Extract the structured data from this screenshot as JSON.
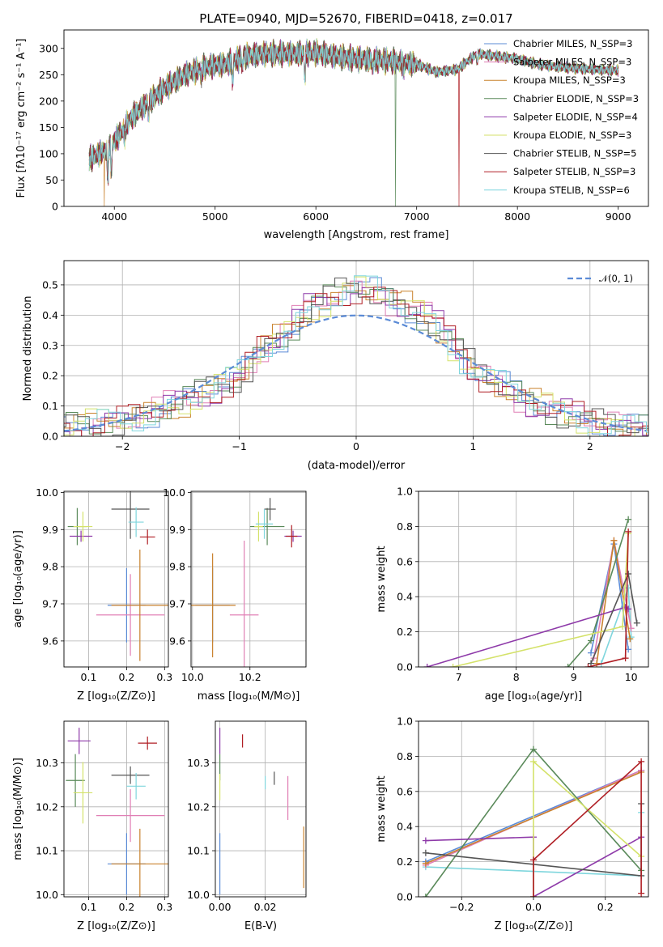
{
  "chart_data": [
    {
      "type": "line",
      "title": "PLATE=0940, MJD=52670, FIBERID=0418, z=0.017",
      "xlabel": "wavelength [Angstrom, rest frame]",
      "ylabel": "Flux [fλ10⁻¹⁷ erg cm⁻² s⁻¹ A⁻¹]",
      "xlim": [
        3500,
        9300
      ],
      "ylim": [
        0,
        335
      ],
      "xticks": [
        4000,
        5000,
        6000,
        7000,
        8000,
        9000
      ],
      "yticks": [
        0,
        50,
        100,
        150,
        200,
        250,
        300
      ],
      "grid": false,
      "legend_position": "top-right",
      "continuum": {
        "x": [
          3750,
          3850,
          3950,
          4100,
          4200,
          4350,
          4500,
          4700,
          4900,
          5100,
          5300,
          5500,
          5800,
          6000,
          6200,
          6400,
          6600,
          6800,
          7000,
          7200,
          7400,
          7600,
          7800,
          8000,
          8200,
          8400,
          8600,
          8800,
          9000
        ],
        "y": [
          90,
          100,
          110,
          150,
          175,
          200,
          225,
          250,
          265,
          270,
          285,
          290,
          290,
          292,
          285,
          280,
          278,
          275,
          270,
          255,
          260,
          290,
          285,
          280,
          270,
          265,
          262,
          260,
          258
        ]
      },
      "series": [
        {
          "name": "Chabrier MILES, N_SSP=3",
          "color": "#5b8bd6",
          "dip_x": null
        },
        {
          "name": "Salpeter MILES, N_SSP=3",
          "color": "#e07fb5",
          "dip_x": null
        },
        {
          "name": "Kroupa MILES, N_SSP=3",
          "color": "#c9822d",
          "dip_x": 3900
        },
        {
          "name": "Chabrier ELODIE, N_SSP=3",
          "color": "#5a8a5a",
          "dip_x": 6790
        },
        {
          "name": "Salpeter ELODIE, N_SSP=4",
          "color": "#8e3aa9",
          "dip_x": null
        },
        {
          "name": "Kroupa ELODIE, N_SSP=3",
          "color": "#d4e26a",
          "dip_x": null
        },
        {
          "name": "Chabrier STELIB, N_SSP=5",
          "color": "#555555",
          "dip_x": null
        },
        {
          "name": "Salpeter STELIB, N_SSP=3",
          "color": "#b01f25",
          "dip_x": 7420
        },
        {
          "name": "Kroupa STELIB, N_SSP=6",
          "color": "#7fd6dd",
          "dip_x": null
        }
      ]
    },
    {
      "type": "line",
      "xlabel": "(data-model)/error",
      "ylabel": "Normed distribution",
      "xlim": [
        -2.5,
        2.5
      ],
      "ylim": [
        0,
        0.58
      ],
      "xticks": [
        -2,
        -1,
        0,
        1,
        2
      ],
      "yticks": [
        0.0,
        0.1,
        0.2,
        0.3,
        0.4,
        0.5
      ],
      "grid": true,
      "legend_position": "top-right",
      "gaussian": {
        "label": "𝒩(0, 1)",
        "color": "#5b8bd6",
        "mean": 0,
        "sigma": 1
      },
      "bin_width": 0.1,
      "histogram_envelope": {
        "x": [
          -2.5,
          -2.0,
          -1.5,
          -1.0,
          -0.8,
          -0.6,
          -0.4,
          -0.2,
          0.0,
          0.2,
          0.4,
          0.6,
          0.8,
          1.0,
          1.5,
          2.0,
          2.5
        ],
        "y": [
          0.03,
          0.05,
          0.11,
          0.19,
          0.29,
          0.34,
          0.42,
          0.46,
          0.49,
          0.47,
          0.43,
          0.4,
          0.32,
          0.22,
          0.11,
          0.05,
          0.02
        ]
      },
      "series_colors": [
        "#5b8bd6",
        "#e07fb5",
        "#c9822d",
        "#5a8a5a",
        "#8e3aa9",
        "#d4e26a",
        "#555555",
        "#b01f25",
        "#7fd6dd"
      ]
    },
    {
      "type": "scatter",
      "xlabel": "Z [log₁₀(Z/Z⊙)]",
      "ylabel": "age  [log₁₀(age/yr)]",
      "xlim": [
        0.035,
        0.31
      ],
      "ylim": [
        9.53,
        10.003
      ],
      "xticks": [
        0.1,
        0.2,
        0.3
      ],
      "yticks": [
        9.6,
        9.7,
        9.8,
        9.9,
        10.0
      ],
      "grid": true,
      "points": [
        {
          "color": "#5b8bd6",
          "x": 0.2,
          "xerr": 0.05,
          "y": 9.696,
          "yerr": 0.1
        },
        {
          "color": "#e07fb5",
          "x": 0.21,
          "xerr": 0.09,
          "y": 9.67,
          "yerr": 0.11
        },
        {
          "color": "#c9822d",
          "x": 0.235,
          "xerr": 0.075,
          "y": 9.696,
          "yerr": 0.15
        },
        {
          "color": "#5a8a5a",
          "x": 0.07,
          "xerr": 0.025,
          "y": 9.908,
          "yerr": 0.05
        },
        {
          "color": "#8e3aa9",
          "x": 0.08,
          "xerr": 0.03,
          "y": 9.882,
          "yerr": 0.015
        },
        {
          "color": "#d4e26a",
          "x": 0.085,
          "xerr": 0.025,
          "y": 9.908,
          "yerr": 0.04
        },
        {
          "color": "#555555",
          "x": 0.21,
          "xerr": 0.05,
          "y": 9.955,
          "yerr": 0.08
        },
        {
          "color": "#b01f25",
          "x": 0.255,
          "xerr": 0.02,
          "y": 9.88,
          "yerr": 0.02
        },
        {
          "color": "#7fd6dd",
          "x": 0.225,
          "xerr": 0.02,
          "y": 9.92,
          "yerr": 0.04
        }
      ]
    },
    {
      "type": "scatter",
      "xlabel": "mass [log₁₀(M/M⊙)]",
      "xlim": [
        9.995,
        10.395
      ],
      "ylim": [
        9.53,
        10.003
      ],
      "xticks": [
        10.0,
        10.2
      ],
      "yticks": [
        9.6,
        9.7,
        9.8,
        9.9,
        10.0
      ],
      "grid": true,
      "points": [
        {
          "color": "#5b8bd6",
          "x": 10.07,
          "xerr": 0.06,
          "y": 9.696,
          "yerr": 0.1
        },
        {
          "color": "#e07fb5",
          "x": 10.18,
          "xerr": 0.05,
          "y": 9.67,
          "yerr": 0.2
        },
        {
          "color": "#c9822d",
          "x": 10.07,
          "xerr": 0.08,
          "y": 9.696,
          "yerr": 0.14
        },
        {
          "color": "#5a8a5a",
          "x": 10.26,
          "xerr": 0.06,
          "y": 9.908,
          "yerr": 0.05
        },
        {
          "color": "#8e3aa9",
          "x": 10.35,
          "xerr": 0.03,
          "y": 9.882,
          "yerr": 0.015
        },
        {
          "color": "#d4e26a",
          "x": 10.23,
          "xerr": 0.015,
          "y": 9.908,
          "yerr": 0.04
        },
        {
          "color": "#555555",
          "x": 10.27,
          "xerr": 0.02,
          "y": 9.955,
          "yerr": 0.03
        },
        {
          "color": "#b01f25",
          "x": 10.345,
          "xerr": 0.02,
          "y": 9.882,
          "yerr": 0.03
        },
        {
          "color": "#7fd6dd",
          "x": 10.25,
          "xerr": 0.03,
          "y": 9.915,
          "yerr": 0.04
        }
      ]
    },
    {
      "type": "line",
      "xlabel": "age  [log₁₀(age/yr)]",
      "ylabel": "mass weight",
      "xlim": [
        6.3,
        10.3
      ],
      "ylim": [
        0,
        1.0
      ],
      "xticks": [
        7,
        8,
        9,
        10
      ],
      "yticks": [
        0.0,
        0.2,
        0.4,
        0.6,
        0.8,
        1.0
      ],
      "grid": true,
      "series": [
        {
          "color": "#7fd6dd",
          "x": [
            9.48,
            9.95,
            10.0
          ],
          "y": [
            0.02,
            0.45,
            0.17
          ]
        },
        {
          "color": "#5b8bd6",
          "x": [
            9.3,
            9.7,
            9.95
          ],
          "y": [
            0.08,
            0.7,
            0.1
          ]
        },
        {
          "color": "#e07fb5",
          "x": [
            9.35,
            9.7,
            10.0
          ],
          "y": [
            0.05,
            0.72,
            0.22
          ]
        },
        {
          "color": "#c9822d",
          "x": [
            9.4,
            9.7,
            9.98
          ],
          "y": [
            0.02,
            0.72,
            0.16
          ]
        },
        {
          "color": "#5a8a5a",
          "x": [
            8.9,
            9.3,
            9.95
          ],
          "y": [
            0.0,
            0.15,
            0.84
          ]
        },
        {
          "color": "#8e3aa9",
          "x": [
            6.45,
            9.9,
            9.95
          ],
          "y": [
            0.0,
            0.34,
            0.33
          ]
        },
        {
          "color": "#d4e26a",
          "x": [
            6.9,
            9.85,
            9.95
          ],
          "y": [
            0.0,
            0.23,
            0.76
          ]
        },
        {
          "color": "#555555",
          "x": [
            9.3,
            9.95,
            10.1
          ],
          "y": [
            0.02,
            0.53,
            0.25
          ]
        },
        {
          "color": "#b01f25",
          "x": [
            9.25,
            9.9,
            9.95
          ],
          "y": [
            0.0,
            0.05,
            0.77
          ]
        }
      ]
    },
    {
      "type": "scatter",
      "xlabel": "Z [log₁₀(Z/Z⊙)]",
      "ylabel": "mass [log₁₀(M/M⊙)]",
      "xlim": [
        0.035,
        0.31
      ],
      "ylim": [
        9.995,
        10.395
      ],
      "xticks": [
        0.1,
        0.2,
        0.3
      ],
      "yticks": [
        10.0,
        10.1,
        10.2,
        10.3
      ],
      "grid": true,
      "points": [
        {
          "color": "#5b8bd6",
          "x": 0.2,
          "xerr": 0.05,
          "y": 10.07,
          "yerr": 0.07
        },
        {
          "color": "#e07fb5",
          "x": 0.21,
          "xerr": 0.09,
          "y": 10.18,
          "yerr": 0.06
        },
        {
          "color": "#c9822d",
          "x": 0.235,
          "xerr": 0.075,
          "y": 10.07,
          "yerr": 0.08
        },
        {
          "color": "#5a8a5a",
          "x": 0.065,
          "xerr": 0.025,
          "y": 10.26,
          "yerr": 0.06
        },
        {
          "color": "#8e3aa9",
          "x": 0.075,
          "xerr": 0.03,
          "y": 10.35,
          "yerr": 0.03
        },
        {
          "color": "#d4e26a",
          "x": 0.085,
          "xerr": 0.025,
          "y": 10.232,
          "yerr": 0.07
        },
        {
          "color": "#555555",
          "x": 0.21,
          "xerr": 0.05,
          "y": 10.272,
          "yerr": 0.02
        },
        {
          "color": "#b01f25",
          "x": 0.255,
          "xerr": 0.025,
          "y": 10.345,
          "yerr": 0.015
        },
        {
          "color": "#7fd6dd",
          "x": 0.225,
          "xerr": 0.025,
          "y": 10.247,
          "yerr": 0.03
        }
      ]
    },
    {
      "type": "scatter",
      "xlabel": "E(B-V)",
      "xlim": [
        -0.002,
        0.038
      ],
      "ylim": [
        9.995,
        10.395
      ],
      "xticks": [
        0.0,
        0.02
      ],
      "yticks": [
        10.0,
        10.1,
        10.2,
        10.3
      ],
      "grid": true,
      "points": [
        {
          "color": "#5b8bd6",
          "x": 0.0,
          "xerr": 0,
          "y": 10.07,
          "yerr": 0.07
        },
        {
          "color": "#e07fb5",
          "x": 0.03,
          "xerr": 0,
          "y": 10.22,
          "yerr": 0.05
        },
        {
          "color": "#c9822d",
          "x": 0.037,
          "xerr": 0,
          "y": 10.085,
          "yerr": 0.07
        },
        {
          "color": "#5a8a5a",
          "x": 0.0,
          "xerr": 0,
          "y": 10.29,
          "yerr": 0.03
        },
        {
          "color": "#8e3aa9",
          "x": 0.0,
          "xerr": 0,
          "y": 10.35,
          "yerr": 0.03
        },
        {
          "color": "#d4e26a",
          "x": 0.0,
          "xerr": 0,
          "y": 10.245,
          "yerr": 0.03
        },
        {
          "color": "#555555",
          "x": 0.024,
          "xerr": 0,
          "y": 10.265,
          "yerr": 0.015
        },
        {
          "color": "#b01f25",
          "x": 0.01,
          "xerr": 0,
          "y": 10.35,
          "yerr": 0.015
        },
        {
          "color": "#7fd6dd",
          "x": 0.02,
          "xerr": 0,
          "y": 10.255,
          "yerr": 0.015
        }
      ]
    },
    {
      "type": "line",
      "xlabel": "Z [log₁₀(Z/Z⊙)]",
      "ylabel": "mass weight",
      "xlim": [
        -0.32,
        0.32
      ],
      "ylim": [
        0,
        1.0
      ],
      "xticks": [
        -0.2,
        0.0,
        0.2
      ],
      "yticks": [
        0.0,
        0.2,
        0.4,
        0.6,
        0.8,
        1.0
      ],
      "grid": true,
      "series": [
        {
          "color": "#7fd6dd",
          "x": [
            -0.3,
            0.3,
            0.3
          ],
          "y": [
            0.17,
            0.12,
            0.48
          ]
        },
        {
          "color": "#5b8bd6",
          "x": [
            -0.3,
            0.3
          ],
          "y": [
            0.2,
            0.72
          ]
        },
        {
          "color": "#e07fb5",
          "x": [
            -0.3,
            0.3
          ],
          "y": [
            0.18,
            0.72
          ]
        },
        {
          "color": "#c9822d",
          "x": [
            -0.3,
            0.3
          ],
          "y": [
            0.19,
            0.71
          ]
        },
        {
          "color": "#5a8a5a",
          "x": [
            -0.3,
            0.0,
            0.3
          ],
          "y": [
            0.0,
            0.84,
            0.15
          ]
        },
        {
          "color": "#8e3aa9",
          "x": [
            -0.3,
            0.0,
            0.0,
            0.3
          ],
          "y": [
            0.32,
            0.34,
            0.0,
            0.34
          ]
        },
        {
          "color": "#d4e26a",
          "x": [
            0.0,
            0.0,
            0.3
          ],
          "y": [
            0.0,
            0.77,
            0.23
          ]
        },
        {
          "color": "#555555",
          "x": [
            -0.3,
            0.3,
            0.3
          ],
          "y": [
            0.25,
            0.12,
            0.53
          ]
        },
        {
          "color": "#b01f25",
          "x": [
            0.0,
            0.0,
            0.3,
            0.3
          ],
          "y": [
            0.0,
            0.21,
            0.77,
            0.02
          ]
        }
      ]
    }
  ]
}
